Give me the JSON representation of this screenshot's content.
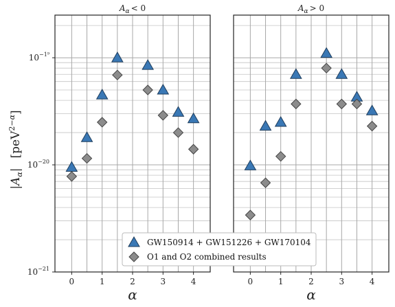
{
  "chart_data": [
    {
      "type": "scatter",
      "title": "A_α < 0",
      "xlabel": "α",
      "ylabel": "|A_α|   [peV^(2−α)]",
      "x_ticks": [
        0,
        1,
        2,
        3,
        4
      ],
      "x_tick_labels": [
        "0",
        "1",
        "2",
        "3",
        "4"
      ],
      "xlim": [
        -0.55,
        4.55
      ],
      "ylim": [
        1e-21,
        2.5e-19
      ],
      "yscale": "log",
      "y_tick_labels": [
        "10⁻²¹",
        "10⁻²⁰",
        "10⁻¹⁹"
      ],
      "grid": true,
      "series": [
        {
          "name": "GW150914 + GW151226 + GW170104",
          "marker": "triangle",
          "color": "#3a78b5",
          "x": [
            0,
            0.5,
            1,
            1.5,
            2.5,
            3,
            3.5,
            4
          ],
          "y": [
            9.5e-21,
            1.8e-20,
            4.5e-20,
            1e-19,
            8.5e-20,
            5e-20,
            3.1e-20,
            2.7e-20
          ]
        },
        {
          "name": "O1 and O2 combined results",
          "marker": "diamond",
          "color": "#8c8c8c",
          "x": [
            0,
            0.5,
            1,
            1.5,
            2.5,
            3,
            3.5,
            4
          ],
          "y": [
            7.8e-21,
            1.15e-20,
            2.5e-20,
            6.9e-20,
            5e-20,
            2.9e-20,
            2e-20,
            1.4e-20
          ]
        }
      ]
    },
    {
      "type": "scatter",
      "title": "A_α > 0",
      "xlabel": "α",
      "xlim": [
        -0.55,
        4.55
      ],
      "ylim": [
        1e-21,
        2.5e-19
      ],
      "yscale": "log",
      "x_ticks": [
        0,
        1,
        2,
        3,
        4
      ],
      "x_tick_labels": [
        "0",
        "1",
        "2",
        "3",
        "4"
      ],
      "grid": true,
      "series": [
        {
          "name": "GW150914 + GW151226 + GW170104",
          "marker": "triangle",
          "color": "#3a78b5",
          "x": [
            0,
            0.5,
            1,
            1.5,
            2.5,
            3,
            3.5,
            4
          ],
          "y": [
            9.8e-21,
            2.3e-20,
            2.5e-20,
            7e-20,
            1.1e-19,
            7e-20,
            4.3e-20,
            3.2e-20
          ]
        },
        {
          "name": "O1 and O2 combined results",
          "marker": "diamond",
          "color": "#8c8c8c",
          "x": [
            0,
            0.5,
            1,
            1.5,
            2.5,
            3,
            3.5,
            4
          ],
          "y": [
            3.4e-21,
            6.8e-21,
            1.2e-20,
            3.7e-20,
            8e-20,
            3.7e-20,
            3.7e-20,
            2.3e-20
          ]
        }
      ]
    }
  ],
  "legend": {
    "placement": "lower-center",
    "entries": [
      {
        "label": "GW150914 + GW151226 + GW170104",
        "marker": "triangle",
        "color": "#3a78b5"
      },
      {
        "label": "O1 and O2 combined results",
        "marker": "diamond",
        "color": "#8c8c8c"
      }
    ]
  }
}
